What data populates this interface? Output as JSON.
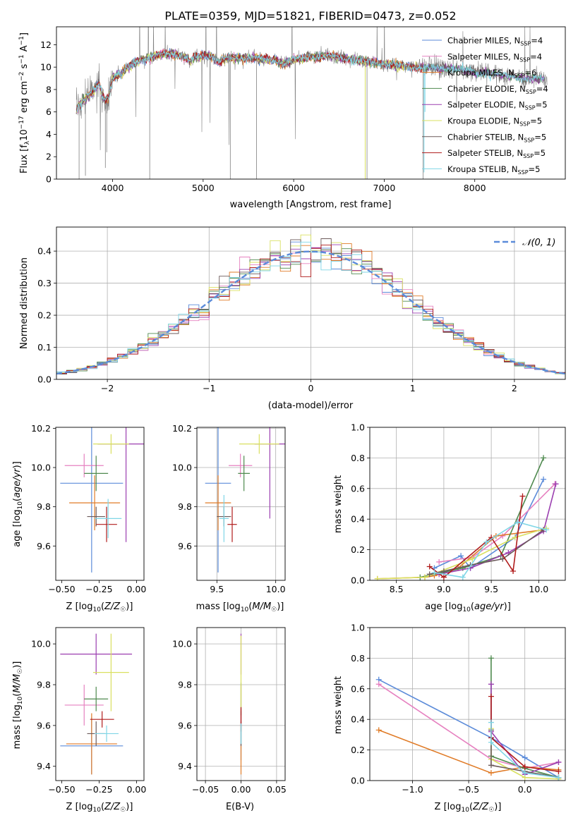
{
  "colors": {
    "series": [
      "#5b8bd9",
      "#e681c0",
      "#e07b27",
      "#4f8a4f",
      "#9b3fb0",
      "#d9e060",
      "#6b5a5a",
      "#b01c1c",
      "#7fd6e6"
    ],
    "gray_spectrum": "#808080",
    "grid": "#b0b0b0",
    "normal_curve": "#5b8bd9"
  },
  "chart_data": [
    {
      "id": "spectrum",
      "type": "line",
      "title": "PLATE=0359, MJD=51821, FIBERID=0473, z=0.052",
      "xlabel": "wavelength [Angstrom, rest frame]",
      "ylabel": "Flux [f_λ 10^-17 erg cm^-2 s^-1 A^-1]",
      "xlim": [
        3380,
        9000
      ],
      "ylim": [
        0,
        13.6
      ],
      "xticks": [
        4000,
        5000,
        6000,
        7000,
        8000
      ],
      "yticks": [
        0,
        2,
        4,
        6,
        8,
        10,
        12
      ],
      "grid": false,
      "legend_position": "top-right",
      "legend": [
        {
          "base": "Chabrier MILES, N",
          "sub": "SSP",
          "suffix": "=4"
        },
        {
          "base": "Salpeter MILES, N",
          "sub": "SSP",
          "suffix": "=4"
        },
        {
          "base": "Kroupa MILES, N",
          "sub": "SSP",
          "suffix": "=6"
        },
        {
          "base": "Chabrier ELODIE, N",
          "sub": "SSP",
          "suffix": "=4"
        },
        {
          "base": "Salpeter ELODIE, N",
          "sub": "SSP",
          "suffix": "=5"
        },
        {
          "base": "Kroupa ELODIE, N",
          "sub": "SSP",
          "suffix": "=5"
        },
        {
          "base": "Chabrier STELIB, N",
          "sub": "SSP",
          "suffix": "=5"
        },
        {
          "base": "Salpeter STELIB, N",
          "sub": "SSP",
          "suffix": "=5"
        },
        {
          "base": "Kroupa STELIB, N",
          "sub": "SSP",
          "suffix": "=5"
        }
      ],
      "model_trend": [
        [
          3600,
          6.3
        ],
        [
          3650,
          6.8
        ],
        [
          3700,
          7.2
        ],
        [
          3750,
          7.6
        ],
        [
          3800,
          8.0
        ],
        [
          3850,
          8.6
        ],
        [
          3880,
          7.6
        ],
        [
          3920,
          7.0
        ],
        [
          3960,
          7.5
        ],
        [
          4000,
          9.0
        ],
        [
          4050,
          9.3
        ],
        [
          4100,
          9.4
        ],
        [
          4150,
          9.9
        ],
        [
          4200,
          10.2
        ],
        [
          4300,
          10.6
        ],
        [
          4400,
          10.9
        ],
        [
          4500,
          11.1
        ],
        [
          4600,
          11.2
        ],
        [
          4700,
          11.1
        ],
        [
          4800,
          10.9
        ],
        [
          4860,
          10.5
        ],
        [
          4900,
          10.9
        ],
        [
          5000,
          11.0
        ],
        [
          5100,
          11.0
        ],
        [
          5175,
          10.4
        ],
        [
          5250,
          10.8
        ],
        [
          5400,
          10.8
        ],
        [
          5600,
          10.8
        ],
        [
          5800,
          10.6
        ],
        [
          5890,
          10.3
        ],
        [
          6000,
          10.7
        ],
        [
          6200,
          10.9
        ],
        [
          6400,
          11.0
        ],
        [
          6563,
          10.8
        ],
        [
          6700,
          10.6
        ],
        [
          6900,
          10.4
        ],
        [
          7100,
          10.2
        ],
        [
          7300,
          10.0
        ],
        [
          7500,
          10.0
        ],
        [
          7800,
          9.8
        ],
        [
          8100,
          9.5
        ],
        [
          8400,
          9.2
        ],
        [
          8550,
          8.9
        ],
        [
          8700,
          9.0
        ]
      ],
      "data_range": [
        3600,
        8800
      ],
      "model_ranges": [
        [
          3600,
          7400
        ],
        [
          3600,
          7420
        ],
        [
          3600,
          7450
        ],
        [
          3600,
          8750
        ],
        [
          3600,
          8760
        ],
        [
          3600,
          7410
        ],
        [
          3600,
          8740
        ],
        [
          3600,
          7430
        ],
        [
          3600,
          8770
        ]
      ]
    },
    {
      "id": "residual_histogram",
      "type": "histogram",
      "xlabel": "(data-model)/error",
      "ylabel": "Normed distribution",
      "xlim": [
        -2.5,
        2.5
      ],
      "ylim": [
        0,
        0.475
      ],
      "xticks": [
        -2,
        -1,
        0,
        1,
        2
      ],
      "yticks": [
        0.0,
        0.1,
        0.2,
        0.3,
        0.4
      ],
      "grid": true,
      "legend": [
        {
          "label": "𝒩(0, 1)",
          "style": "dashed"
        }
      ],
      "legend_position": "top-right",
      "bin_width": 0.1,
      "series_count": 9
    },
    {
      "id": "Z_vs_age",
      "type": "errorbar",
      "xlabel": "Z [log₁₀(Z/Z☉)]",
      "ylabel": "age  [log₁₀(age/yr)]",
      "xlim": [
        -0.54,
        0.05
      ],
      "ylim": [
        9.425,
        10.205
      ],
      "xticks": [
        -0.5,
        -0.25,
        0.0
      ],
      "yticks": [
        9.6,
        9.8,
        10.0,
        10.2
      ],
      "grid": false,
      "points": [
        {
          "x": -0.3,
          "xerr": 0.21,
          "y": 9.92,
          "yerr": 0.455
        },
        {
          "x": -0.35,
          "xerr": 0.13,
          "y": 10.01,
          "yerr": 0.06
        },
        {
          "x": -0.28,
          "xerr": 0.17,
          "y": 9.82,
          "yerr": 0.14
        },
        {
          "x": -0.27,
          "xerr": 0.08,
          "y": 9.97,
          "yerr": 0.09
        },
        {
          "x": -0.07,
          "xerr": 0.19,
          "y": 10.12,
          "yerr": 0.5
        },
        {
          "x": -0.17,
          "xerr": 0.12,
          "y": 10.12,
          "yerr": 0.05
        },
        {
          "x": -0.27,
          "xerr": 0.06,
          "y": 9.75,
          "yerr": 0.05
        },
        {
          "x": -0.2,
          "xerr": 0.07,
          "y": 9.71,
          "yerr": 0.09
        },
        {
          "x": -0.19,
          "xerr": 0.09,
          "y": 9.74,
          "yerr": 0.1
        }
      ]
    },
    {
      "id": "mass_vs_age",
      "type": "errorbar",
      "xlabel": "mass [log₁₀(M/M☉)]",
      "ylabel": "",
      "xlim": [
        9.33,
        10.08
      ],
      "ylim": [
        9.425,
        10.205
      ],
      "xticks": [
        9.5,
        10.0
      ],
      "yticks": [
        9.6,
        9.8,
        10.0,
        10.2
      ],
      "grid": true,
      "points": [
        {
          "x": 9.51,
          "xerr": 0.11,
          "y": 9.92,
          "yerr": 0.455
        },
        {
          "x": 9.7,
          "xerr": 0.1,
          "y": 10.01,
          "yerr": 0.06
        },
        {
          "x": 9.51,
          "xerr": 0.11,
          "y": 9.82,
          "yerr": 0.14
        },
        {
          "x": 9.73,
          "xerr": 0.05,
          "y": 9.97,
          "yerr": 0.09
        },
        {
          "x": 9.95,
          "xerr": 0.13,
          "y": 10.12,
          "yerr": 0.38
        },
        {
          "x": 9.86,
          "xerr": 0.17,
          "y": 10.12,
          "yerr": 0.05
        },
        {
          "x": 9.56,
          "xerr": 0.06,
          "y": 9.75,
          "yerr": 0.05
        },
        {
          "x": 9.63,
          "xerr": 0.04,
          "y": 9.71,
          "yerr": 0.09
        },
        {
          "x": 9.56,
          "xerr": 0.04,
          "y": 9.74,
          "yerr": 0.12
        }
      ]
    },
    {
      "id": "age_vs_mass_weight",
      "type": "line",
      "xlabel": "age  [log₁₀(age/yr)]",
      "ylabel": "mass weight",
      "xlim": [
        8.22,
        10.28
      ],
      "ylim": [
        0,
        1.0
      ],
      "xticks": [
        8.5,
        9.0,
        9.5,
        10.0
      ],
      "yticks": [
        0.0,
        0.2,
        0.4,
        0.6,
        0.8,
        1.0
      ],
      "grid": true,
      "series": [
        {
          "x": [
            8.9,
            9.18,
            9.28,
            9.75,
            10.05
          ],
          "y": [
            0.08,
            0.16,
            0.08,
            0.28,
            0.66
          ]
        },
        {
          "x": [
            8.95,
            9.3,
            9.62,
            10.17
          ],
          "y": [
            0.12,
            0.15,
            0.29,
            0.63
          ]
        },
        {
          "x": [
            8.3,
            8.8,
            8.9,
            9.15,
            9.55,
            10.05
          ],
          "y": [
            0.01,
            0.02,
            0.03,
            0.08,
            0.29,
            0.33
          ]
        },
        {
          "x": [
            8.75,
            9.2,
            9.6,
            10.05
          ],
          "y": [
            0.02,
            0.08,
            0.16,
            0.8
          ]
        },
        {
          "x": [
            8.95,
            9.28,
            9.68,
            10.05,
            10.18
          ],
          "y": [
            0.04,
            0.08,
            0.18,
            0.32,
            0.63
          ]
        },
        {
          "x": [
            8.3,
            8.8,
            9.3,
            9.75,
            10.08
          ],
          "y": [
            0.01,
            0.02,
            0.14,
            0.28,
            0.34
          ]
        },
        {
          "x": [
            8.85,
            9.0,
            9.28,
            9.62,
            10.05
          ],
          "y": [
            0.04,
            0.06,
            0.1,
            0.14,
            0.33
          ]
        },
        {
          "x": [
            8.85,
            9.0,
            9.5,
            9.73,
            9.83
          ],
          "y": [
            0.09,
            0.02,
            0.28,
            0.06,
            0.55
          ]
        },
        {
          "x": [
            8.9,
            9.2,
            9.45,
            9.78,
            10.08
          ],
          "y": [
            0.05,
            0.02,
            0.25,
            0.38,
            0.33
          ]
        }
      ]
    },
    {
      "id": "Z_vs_mass",
      "type": "errorbar",
      "xlabel": "Z [log₁₀(Z/Z☉)]",
      "ylabel": "mass [log₁₀(M/M☉)]",
      "xlim": [
        -0.54,
        0.05
      ],
      "ylim": [
        9.33,
        10.08
      ],
      "xticks": [
        -0.5,
        -0.25,
        0.0
      ],
      "yticks": [
        9.4,
        9.6,
        9.8,
        10.0
      ],
      "grid": false,
      "points": [
        {
          "x": -0.3,
          "xerr": 0.21,
          "y": 9.5,
          "yerr": 0.14
        },
        {
          "x": -0.35,
          "xerr": 0.13,
          "y": 9.7,
          "yerr": 0.1
        },
        {
          "x": -0.3,
          "xerr": 0.17,
          "y": 9.51,
          "yerr": 0.15
        },
        {
          "x": -0.27,
          "xerr": 0.08,
          "y": 9.73,
          "yerr": 0.06
        },
        {
          "x": -0.27,
          "xerr": 0.24,
          "y": 9.95,
          "yerr": 0.1
        },
        {
          "x": -0.17,
          "xerr": 0.12,
          "y": 9.86,
          "yerr": 0.19
        },
        {
          "x": -0.27,
          "xerr": 0.06,
          "y": 9.56,
          "yerr": 0.06
        },
        {
          "x": -0.23,
          "xerr": 0.08,
          "y": 9.63,
          "yerr": 0.04
        },
        {
          "x": -0.2,
          "xerr": 0.08,
          "y": 9.56,
          "yerr": 0.04
        }
      ]
    },
    {
      "id": "ebv_vs_mass",
      "type": "errorbar",
      "xlabel": "E(B-V)",
      "ylabel": "",
      "xlim": [
        -0.062,
        0.062
      ],
      "ylim": [
        9.33,
        10.08
      ],
      "xticks": [
        -0.05,
        0.0,
        0.05
      ],
      "yticks": [
        9.4,
        9.6,
        9.8,
        10.0
      ],
      "grid": true,
      "points": [
        {
          "x": 0,
          "xerr": 0,
          "y": 9.55,
          "yerr": 0.12
        },
        {
          "x": 0,
          "xerr": 0,
          "y": 9.7,
          "yerr": 0.1
        },
        {
          "x": 0,
          "xerr": 0,
          "y": 9.52,
          "yerr": 0.16
        },
        {
          "x": 0,
          "xerr": 0,
          "y": 9.73,
          "yerr": 0.08
        },
        {
          "x": 0,
          "xerr": 0,
          "y": 9.95,
          "yerr": 0.1
        },
        {
          "x": 0,
          "xerr": 0,
          "y": 9.86,
          "yerr": 0.18
        },
        {
          "x": 0,
          "xerr": 0,
          "y": 9.56,
          "yerr": 0.06
        },
        {
          "x": 0,
          "xerr": 0,
          "y": 9.63,
          "yerr": 0.06
        },
        {
          "x": 0,
          "xerr": 0,
          "y": 9.56,
          "yerr": 0.05
        }
      ]
    },
    {
      "id": "Z_vs_mass_weight",
      "type": "line",
      "xlabel": "Z [log₁₀(Z/Z☉)]",
      "ylabel": "mass weight",
      "xlim": [
        -1.38,
        0.36
      ],
      "ylim": [
        0,
        1.0
      ],
      "xticks": [
        -1.0,
        -0.5,
        0.0
      ],
      "yticks": [
        0.0,
        0.2,
        0.4,
        0.6,
        0.8,
        1.0
      ],
      "grid": true,
      "series": [
        {
          "x": [
            -1.3,
            -0.3,
            0.0,
            0.3
          ],
          "y": [
            0.66,
            0.28,
            0.15,
            0.02
          ]
        },
        {
          "x": [
            -1.3,
            -0.3,
            0.0,
            0.3
          ],
          "y": [
            0.63,
            0.14,
            0.08,
            0.12
          ]
        },
        {
          "x": [
            -1.3,
            -0.3,
            0.0,
            0.3
          ],
          "y": [
            0.33,
            0.05,
            0.09,
            0.07
          ]
        },
        {
          "x": [
            -0.3,
            -0.3,
            0.0,
            0.3
          ],
          "y": [
            0.8,
            0.16,
            0.08,
            0.02
          ]
        },
        {
          "x": [
            -0.3,
            -0.3,
            0.0,
            0.3
          ],
          "y": [
            0.63,
            0.32,
            0.04,
            0.12
          ]
        },
        {
          "x": [
            -0.3,
            -0.3,
            0.0,
            0.3
          ],
          "y": [
            0.34,
            0.14,
            0.02,
            0.01
          ]
        },
        {
          "x": [
            -0.3,
            -0.3,
            0.0,
            0.3
          ],
          "y": [
            0.33,
            0.1,
            0.06,
            0.02
          ]
        },
        {
          "x": [
            -0.3,
            -0.3,
            0.0,
            0.3
          ],
          "y": [
            0.55,
            0.28,
            0.09,
            0.06
          ]
        },
        {
          "x": [
            -0.3,
            -0.3,
            0.0,
            0.3
          ],
          "y": [
            0.38,
            0.25,
            0.05,
            0.02
          ]
        }
      ]
    }
  ]
}
